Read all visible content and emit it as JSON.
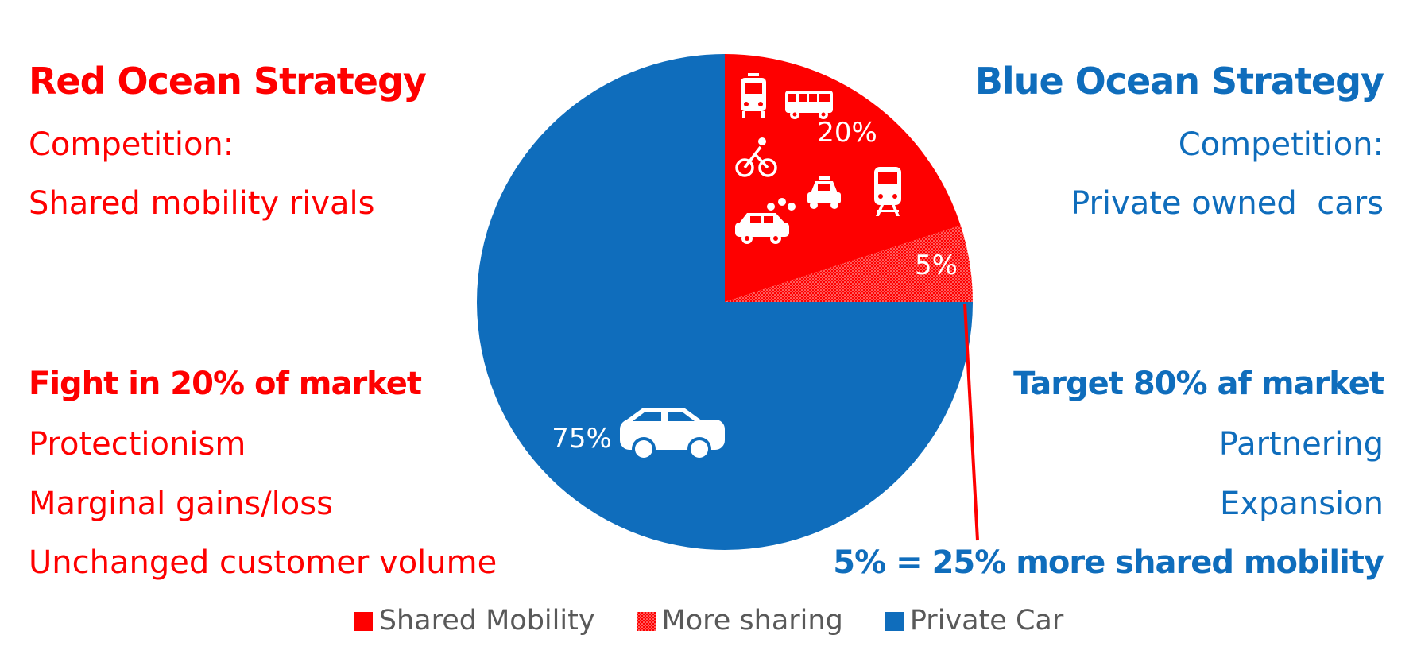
{
  "left": {
    "title": "Red Ocean Strategy",
    "line1": "Competition:",
    "line2": "Shared mobility rivals",
    "heading2": "Fight in 20% of market",
    "line3": "Protectionism",
    "line4": "Marginal gains/loss",
    "line5": "Unchanged customer volume"
  },
  "right": {
    "title": "Blue Ocean Strategy",
    "line1": "Competition:",
    "line2": "Private owned  cars",
    "heading2": "Target 80% af market",
    "line3": "Partnering",
    "line4": "Expansion",
    "callout": "5% = 25% more shared mobility"
  },
  "colors": {
    "red": "#fe0000",
    "blue": "#0f6dbc",
    "legend_text": "#595959"
  },
  "chart_data": {
    "type": "pie",
    "start": "12 o'clock, clockwise",
    "slices": [
      {
        "name": "Shared Mobility",
        "value": 20,
        "label": "20%",
        "color": "#fe0000",
        "pattern": "solid"
      },
      {
        "name": "More sharing",
        "value": 5,
        "label": "5%",
        "color": "#fe0000",
        "pattern": "dotted"
      },
      {
        "name": "Private Car",
        "value": 75,
        "label": "75%",
        "color": "#0f6dbc",
        "pattern": "solid"
      }
    ],
    "icons_in_shared_slice": [
      "tram-icon",
      "bus-icon",
      "bicycle-icon",
      "taxi-icon",
      "train-icon",
      "car-sharing-icon"
    ],
    "icon_in_private_slice": "car-icon",
    "legend": [
      "Shared Mobility",
      "More sharing",
      "Private Car"
    ],
    "legend_placement": "bottom"
  }
}
